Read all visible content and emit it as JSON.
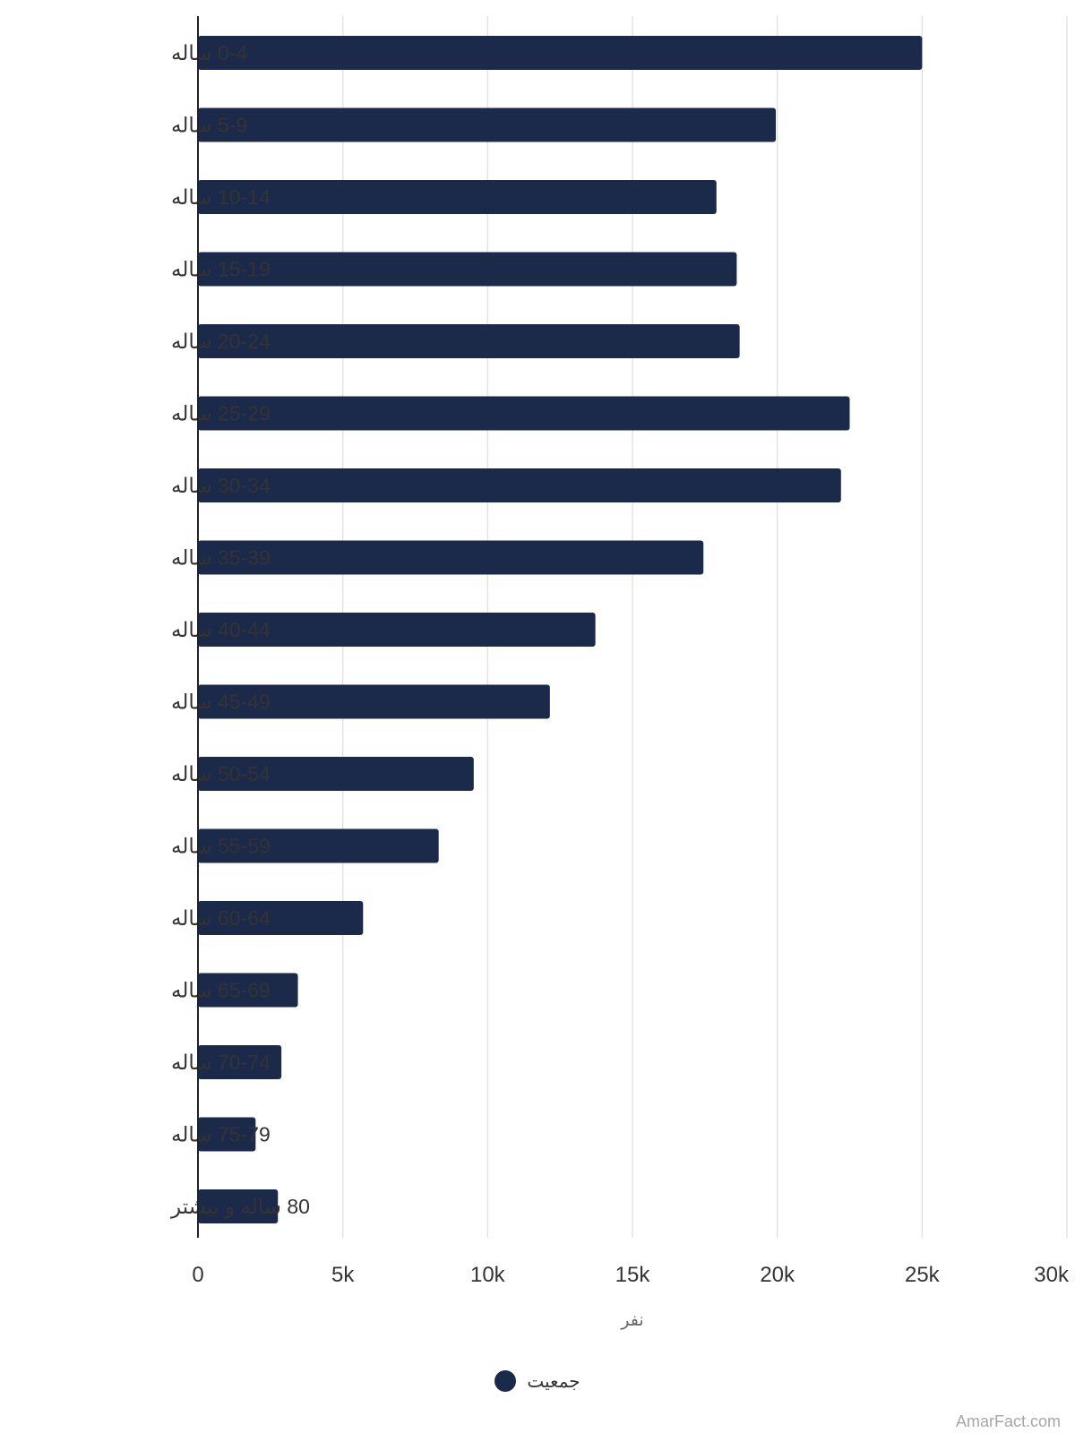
{
  "colors": {
    "bar": "#1b2a4a",
    "grid": "#e3e3e3",
    "axis": "#222222"
  },
  "chart_data": {
    "type": "bar",
    "orientation": "horizontal",
    "categories": [
      "0-4 ساله",
      "5-9 ساله",
      "10-14 ساله",
      "15-19 ساله",
      "20-24 ساله",
      "25-29 ساله",
      "30-34 ساله",
      "35-39 ساله",
      "40-44 ساله",
      "45-49 ساله",
      "50-54 ساله",
      "55-59 ساله",
      "60-64 ساله",
      "65-69 ساله",
      "70-74 ساله",
      "75-79 ساله",
      "80 ساله و بیشتر"
    ],
    "series": [
      {
        "name": "جمعیت",
        "values": [
          25000,
          19950,
          17900,
          18600,
          18700,
          22500,
          22200,
          17450,
          13720,
          12150,
          9520,
          8310,
          5700,
          3450,
          2880,
          1990,
          2760
        ]
      }
    ],
    "xlabel": "نفر",
    "ylabel": "",
    "xlim": [
      0,
      30000
    ],
    "xticks": [
      "0",
      "5k",
      "10k",
      "15k",
      "20k",
      "25k",
      "30k"
    ],
    "grid": true,
    "legend": "bottom-center"
  },
  "footer": {
    "watermark": "AmarFact.com"
  }
}
